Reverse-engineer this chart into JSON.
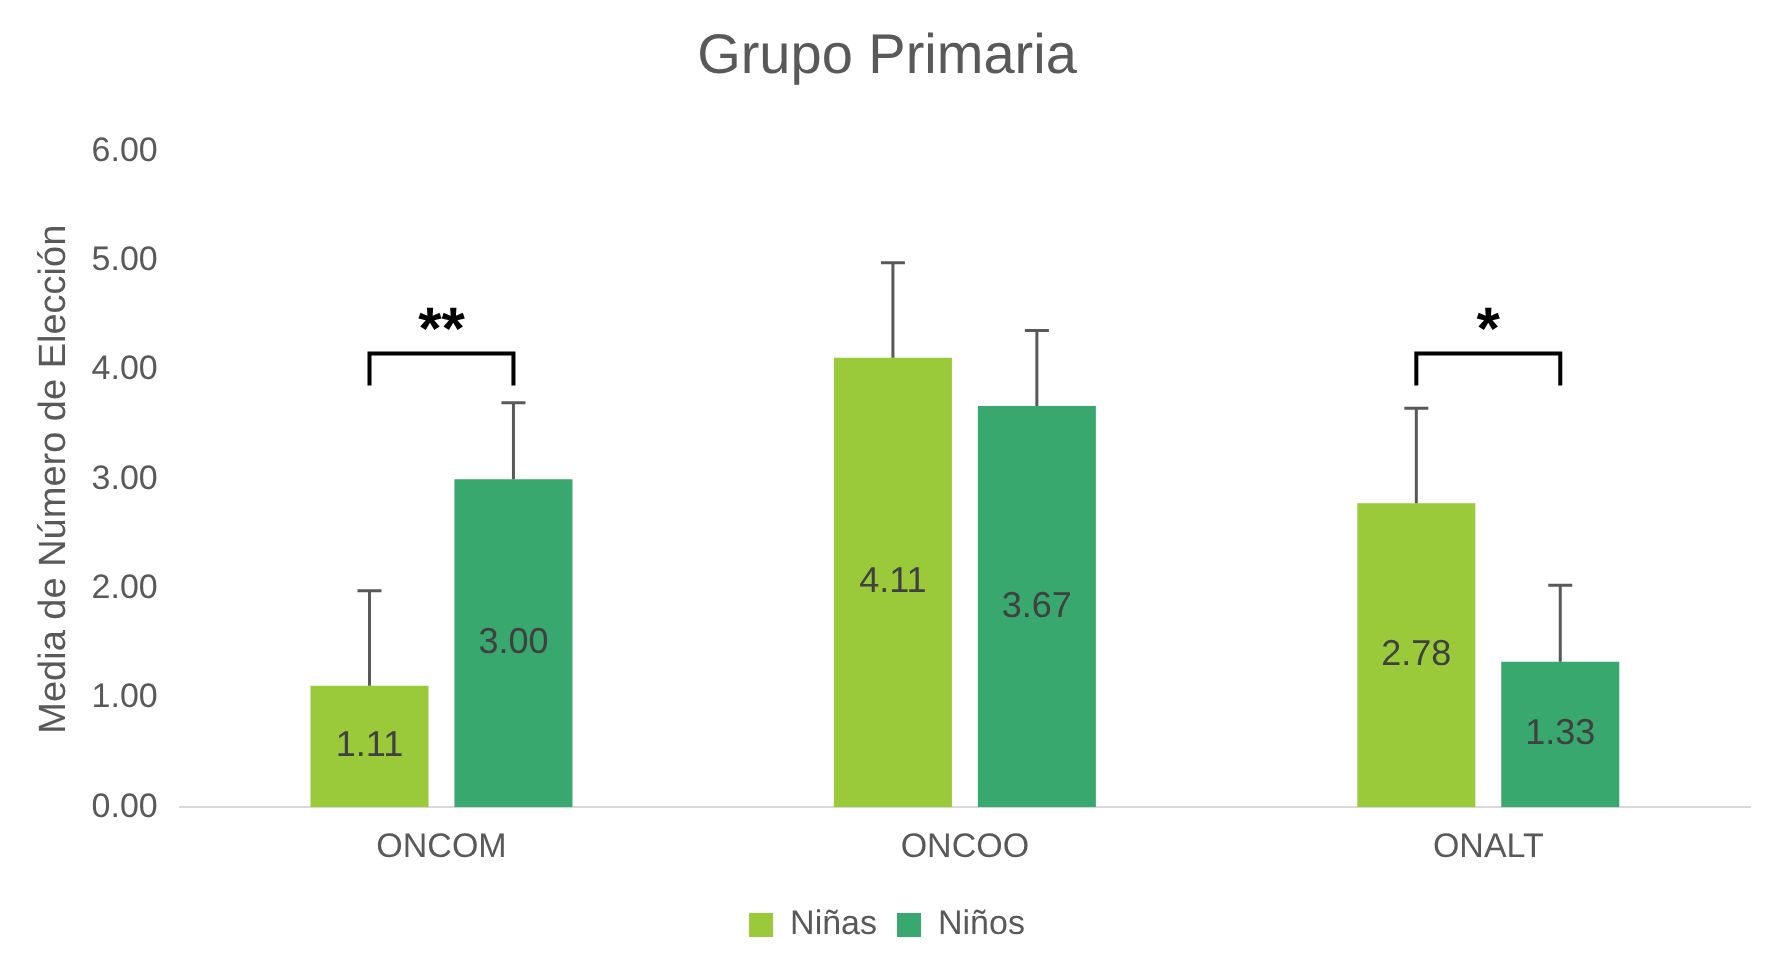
{
  "chart_data": {
    "type": "bar",
    "title": "Grupo Primaria",
    "ylabel": "Media de Número de Elección",
    "categories": [
      "ONCOM",
      "ONCOO",
      "ONALT"
    ],
    "series": [
      {
        "name": "Niñas",
        "color": "#9ac93a",
        "values": [
          1.11,
          4.11,
          2.78
        ],
        "value_labels": [
          "1.11",
          "4.11",
          "2.78"
        ],
        "errors": [
          [
            1.11,
            1.98
          ],
          [
            4.11,
            4.98
          ],
          [
            2.78,
            3.65
          ]
        ]
      },
      {
        "name": "Niños",
        "color": "#38a86e",
        "values": [
          3.0,
          3.67,
          1.33
        ],
        "value_labels": [
          "3.00",
          "3.67",
          "1.33"
        ],
        "errors": [
          [
            3.0,
            3.7
          ],
          [
            3.67,
            4.36
          ],
          [
            1.33,
            2.03
          ]
        ]
      }
    ],
    "ylim": [
      0,
      6
    ],
    "yticks": [
      {
        "value": 0,
        "label": "0.00"
      },
      {
        "value": 1,
        "label": "1.00"
      },
      {
        "value": 2,
        "label": "2.00"
      },
      {
        "value": 3,
        "label": "3.00"
      },
      {
        "value": 4,
        "label": "4.00"
      },
      {
        "value": 5,
        "label": "5.00"
      },
      {
        "value": 6,
        "label": "6.00"
      }
    ],
    "annotations": [
      "**",
      "*"
    ],
    "grid": false,
    "legend": "bottom"
  }
}
